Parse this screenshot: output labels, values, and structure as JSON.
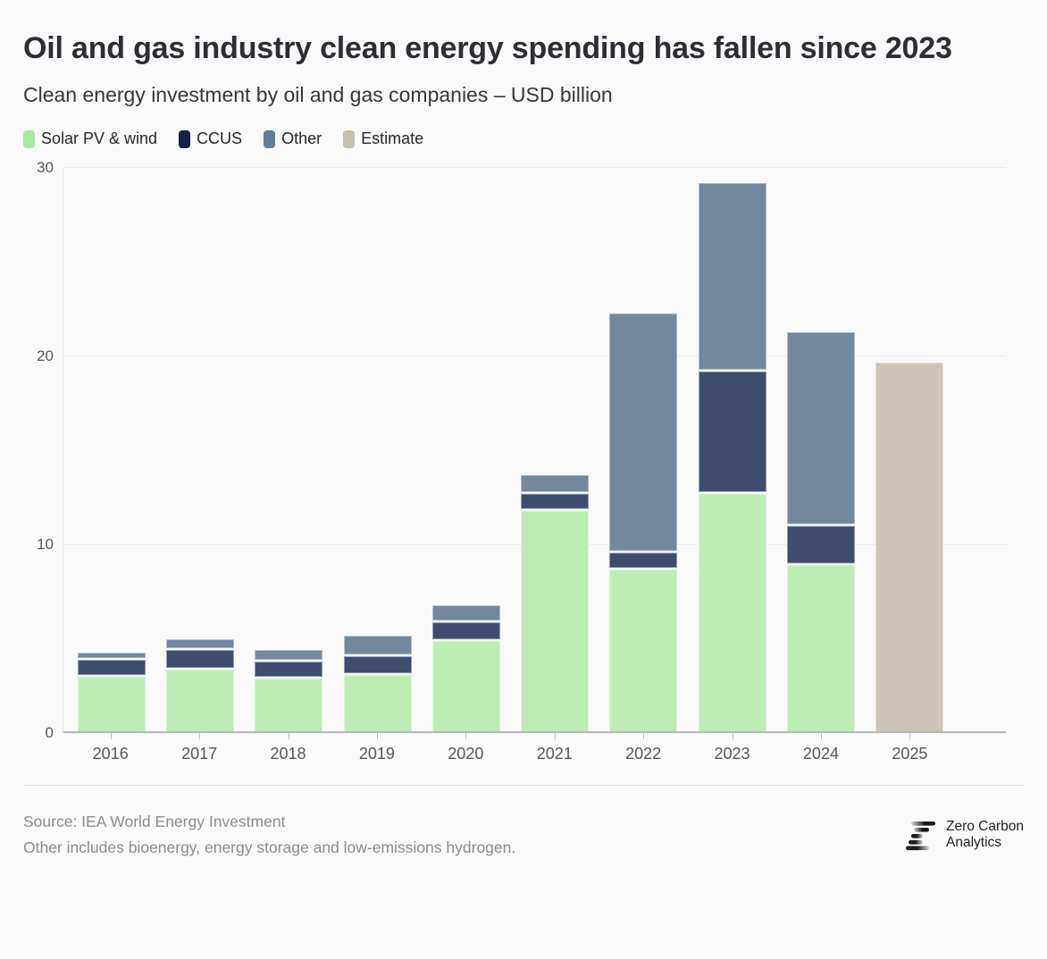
{
  "header": {
    "title": "Oil and gas industry clean energy spending has fallen since 2023",
    "subtitle": "Clean energy investment by oil and gas companies – USD billion"
  },
  "legend": [
    {
      "label": "Solar PV & wind",
      "color": "#a9e8a2"
    },
    {
      "label": "CCUS",
      "color": "#16204a"
    },
    {
      "label": "Other",
      "color": "#5f7e9c"
    },
    {
      "label": "Estimate",
      "color": "#c6beb0"
    }
  ],
  "chart_data": {
    "type": "bar",
    "stacked": true,
    "title": "Clean energy investment by oil and gas companies",
    "ylabel": "USD billion",
    "xlabel": "",
    "categories": [
      "2016",
      "2017",
      "2018",
      "2019",
      "2020",
      "2021",
      "2022",
      "2023",
      "2024",
      "2025"
    ],
    "series": [
      {
        "name": "Solar PV & wind",
        "color": "#bdecb5",
        "values": [
          3.0,
          3.4,
          2.9,
          3.1,
          4.9,
          11.8,
          8.7,
          12.7,
          8.9,
          null
        ]
      },
      {
        "name": "CCUS",
        "color": "#3e4c6e",
        "values": [
          0.9,
          1.0,
          0.9,
          1.0,
          1.0,
          0.9,
          0.9,
          6.5,
          2.1,
          null
        ]
      },
      {
        "name": "Other",
        "color": "#71889f",
        "values": [
          0.4,
          0.6,
          0.6,
          1.1,
          0.9,
          1.0,
          12.7,
          10.0,
          10.3,
          null
        ]
      },
      {
        "name": "Estimate",
        "color": "#ccc5b7",
        "values": [
          null,
          null,
          null,
          null,
          null,
          null,
          null,
          null,
          null,
          19.7
        ]
      }
    ],
    "totals": [
      4.3,
      5.0,
      4.4,
      5.2,
      6.8,
      13.7,
      22.3,
      29.2,
      21.3,
      19.7
    ],
    "ylim": [
      0,
      30
    ],
    "yticks": [
      0,
      10,
      20,
      30
    ],
    "grid": "horizontal",
    "legend_position": "top"
  },
  "footer": {
    "source": "Source: IEA World Energy Investment",
    "note": "Other includes bioenergy, energy storage and low-emissions hydrogen.",
    "logo": {
      "line1": "Zero Carbon",
      "line2": "Analytics"
    }
  }
}
